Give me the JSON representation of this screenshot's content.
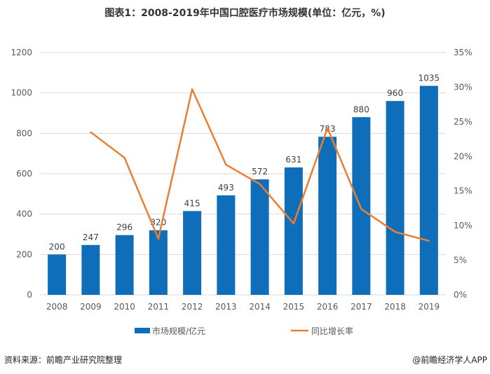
{
  "title": "图表1：2008-2019年中国口腔医疗市场规模(单位：亿元，%)",
  "source": "资料来源：前瞻产业研究院整理",
  "credit": "@前瞻经济学人APP",
  "chart_data": {
    "type": "bar+line",
    "categories": [
      "2008",
      "2009",
      "2010",
      "2011",
      "2012",
      "2013",
      "2014",
      "2015",
      "2016",
      "2017",
      "2018",
      "2019"
    ],
    "series": [
      {
        "name": "市场规模/亿元",
        "type": "bar",
        "axis": "left",
        "color": "#0E6EBA",
        "values": [
          200,
          247,
          296,
          320,
          415,
          493,
          572,
          631,
          783,
          880,
          960,
          1035
        ]
      },
      {
        "name": "同比增长率",
        "type": "line",
        "axis": "right",
        "color": "#ED7D31",
        "values": [
          null,
          23.5,
          19.8,
          8.1,
          29.7,
          18.8,
          16.0,
          10.3,
          24.1,
          12.4,
          9.1,
          7.8
        ]
      }
    ],
    "y_left": {
      "range": [
        0,
        1200
      ],
      "ticks": [
        "0",
        "200",
        "400",
        "600",
        "800",
        "1000",
        "1200"
      ]
    },
    "y_right": {
      "range": [
        0,
        35
      ],
      "ticks": [
        "0%",
        "5%",
        "10%",
        "15%",
        "20%",
        "25%",
        "30%",
        "35%"
      ]
    },
    "grid": true,
    "legend_position": "bottom",
    "data_labels": true
  }
}
